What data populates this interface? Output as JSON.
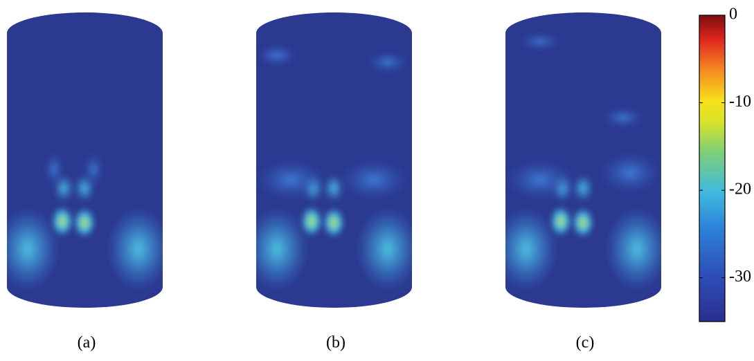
{
  "chart_data": {
    "type": "colorbar",
    "panels": [
      "(a)",
      "(b)",
      "(c)"
    ],
    "clim": [
      -35,
      0
    ],
    "cticks": [
      0,
      -10,
      -20,
      -30
    ]
  }
}
